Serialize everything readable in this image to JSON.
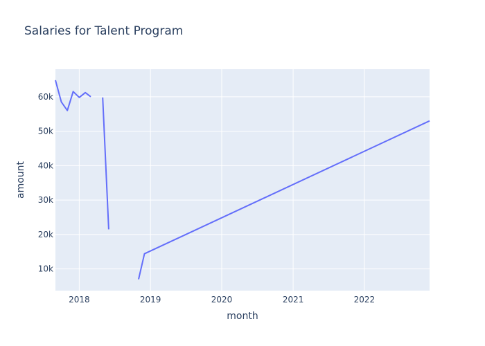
{
  "chart_data": {
    "type": "line",
    "title": "Salaries for Talent Program",
    "xlabel": "month",
    "ylabel": "amount",
    "xlim": [
      "2017-09-01",
      "2022-12-01"
    ],
    "ylim": [
      3700,
      68000
    ],
    "x_ticks": [
      {
        "label": "2018",
        "value": "2018-01-01"
      },
      {
        "label": "2019",
        "value": "2019-01-01"
      },
      {
        "label": "2020",
        "value": "2020-01-01"
      },
      {
        "label": "2021",
        "value": "2021-01-01"
      },
      {
        "label": "2022",
        "value": "2022-01-01"
      }
    ],
    "y_ticks": [
      {
        "label": "10k",
        "value": 10000
      },
      {
        "label": "20k",
        "value": 20000
      },
      {
        "label": "30k",
        "value": 30000
      },
      {
        "label": "40k",
        "value": 40000
      },
      {
        "label": "50k",
        "value": 50000
      },
      {
        "label": "60k",
        "value": 60000
      }
    ],
    "grid": true,
    "colors": {
      "plot_bg": "#e5ecf6",
      "grid": "#ffffff",
      "line": "#636efa",
      "text": "#2a3f5f"
    },
    "series": [
      {
        "points": [
          {
            "x": "2017-09-01",
            "y": 64800
          },
          {
            "x": "2017-10-01",
            "y": 58500
          },
          {
            "x": "2017-11-01",
            "y": 56000
          },
          {
            "x": "2017-12-01",
            "y": 61500
          },
          {
            "x": "2018-01-01",
            "y": 59800
          },
          {
            "x": "2018-02-01",
            "y": 61200
          },
          {
            "x": "2018-03-01",
            "y": 60000
          },
          {
            "x": "2018-04-01",
            "y": null
          },
          {
            "x": "2018-05-01",
            "y": 59800
          },
          {
            "x": "2018-06-01",
            "y": 21500
          },
          {
            "x": "2018-07-01",
            "y": null
          },
          {
            "x": "2018-08-01",
            "y": null
          },
          {
            "x": "2018-09-01",
            "y": null
          },
          {
            "x": "2018-10-01",
            "y": null
          },
          {
            "x": "2018-11-01",
            "y": 7000
          },
          {
            "x": "2018-12-01",
            "y": 14400
          },
          {
            "x": "2022-12-01",
            "y": 53000
          }
        ]
      }
    ]
  }
}
